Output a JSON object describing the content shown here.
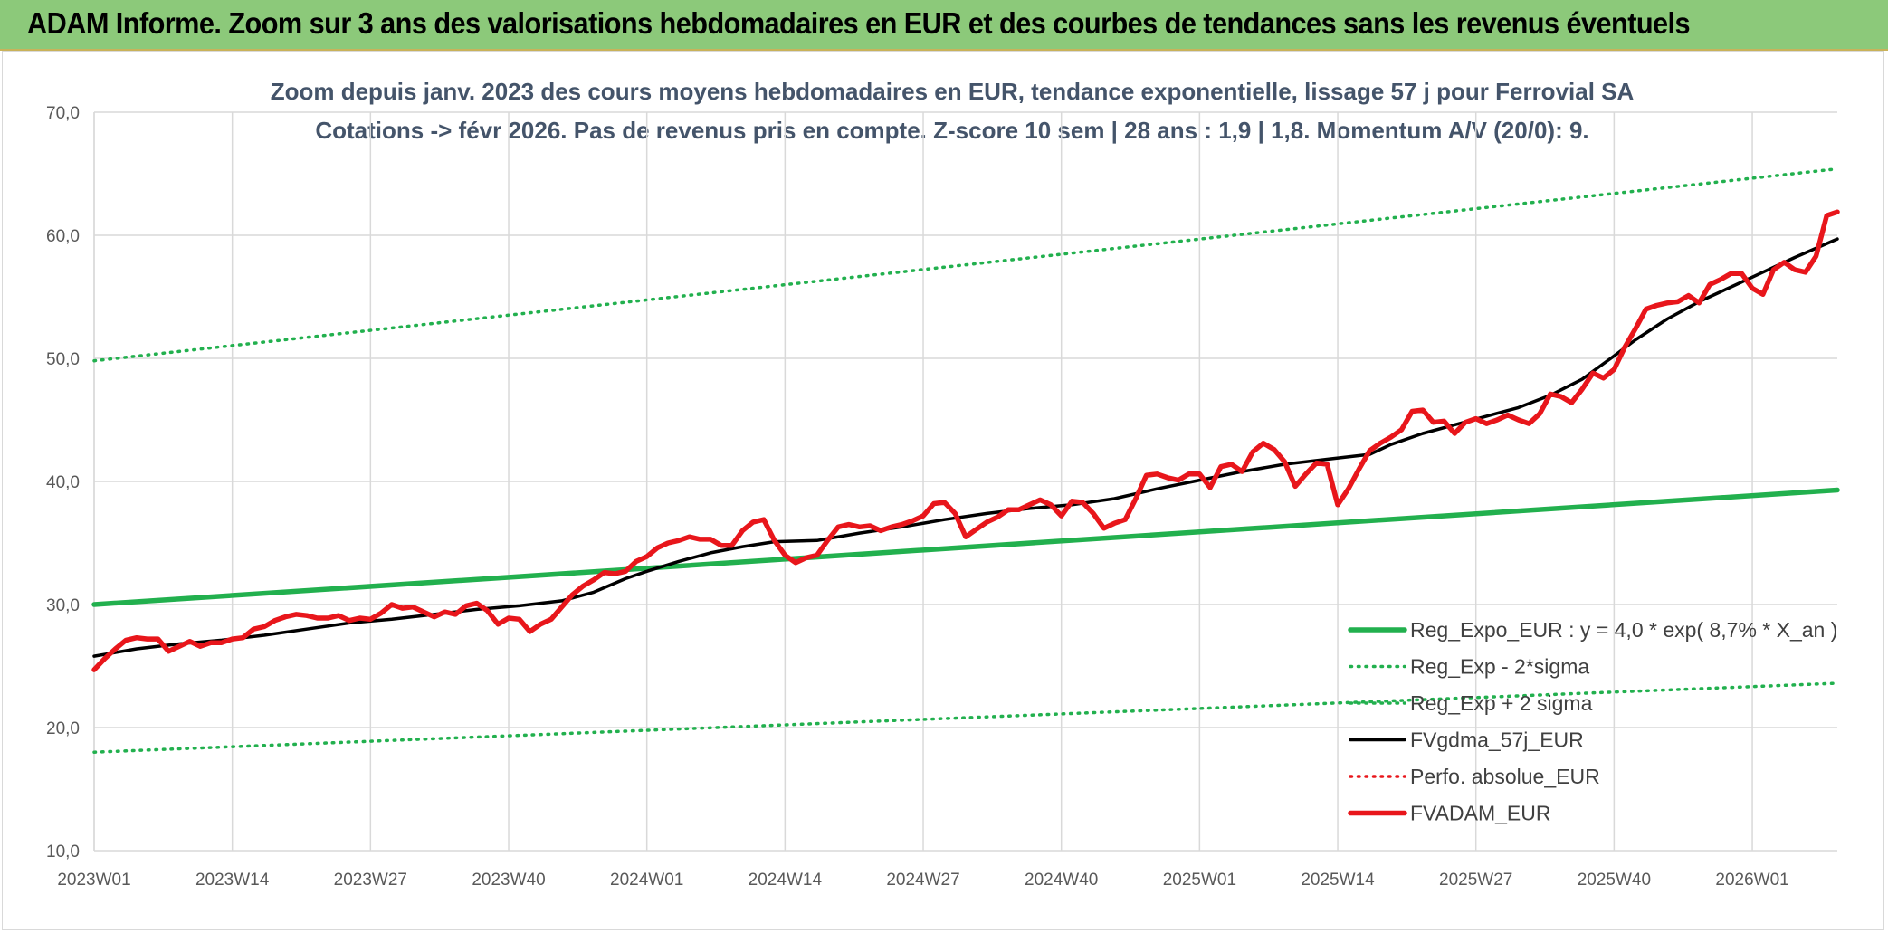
{
  "header": {
    "title": "ADAM Informe. Zoom sur 3 ans des valorisations hebdomadaires en EUR et des courbes de tendances sans les revenus éventuels"
  },
  "colors": {
    "header_bg": "#8cc97a",
    "reg_expo": "#22b04e",
    "fvgdma": "#000000",
    "fvadam": "#e8161b",
    "perfo": "#e8161b",
    "grid": "#d9d9d9"
  },
  "chart_data": {
    "type": "line",
    "title_line1": "Zoom depuis janv. 2023 des cours moyens hebdomadaires en EUR, tendance exponentielle, lissage 57 j pour Ferrovial SA",
    "title_line2": "Cotations -> févr 2026. Pas de revenus pris en compte. Z-score 10 sem | 28 ans : 1,9 | 1,8. Momentum A/V (20/0): 9.",
    "x_tick_labels": [
      "2023W01",
      "2023W14",
      "2023W27",
      "2023W40",
      "2024W01",
      "2024W14",
      "2024W27",
      "2024W40",
      "2025W01",
      "2025W14",
      "2025W27",
      "2025W40",
      "2026W01"
    ],
    "x_tick_weeks": [
      0,
      13,
      26,
      39,
      52,
      65,
      78,
      91,
      104,
      117,
      130,
      143,
      156
    ],
    "x_range": [
      0,
      164
    ],
    "y_tick_labels": [
      "10,0",
      "20,0",
      "30,0",
      "40,0",
      "50,0",
      "60,0",
      "70,0"
    ],
    "ylim": [
      10,
      70
    ],
    "grid": true,
    "legend_position": "bottom-right",
    "series": [
      {
        "name": "Reg_Expo_EUR : y = 4,0 * exp( 8,7% *  X_an )",
        "style": "solid-thick",
        "color": "#22b04e",
        "points": [
          [
            0,
            30.0
          ],
          [
            164,
            39.3
          ]
        ]
      },
      {
        "name": "Reg_Exp - 2*sigma",
        "style": "dotted",
        "color": "#22b04e",
        "points": [
          [
            0,
            18.0
          ],
          [
            164,
            23.6
          ]
        ]
      },
      {
        "name": "Reg_Exp + 2 sigma",
        "style": "dotted",
        "color": "#22b04e",
        "points": [
          [
            0,
            49.8
          ],
          [
            164,
            65.4
          ]
        ]
      },
      {
        "name": "FVgdma_57j_EUR",
        "style": "solid",
        "color": "#000000",
        "points": [
          [
            0,
            25.8
          ],
          [
            4,
            26.4
          ],
          [
            8,
            26.8
          ],
          [
            12,
            27.1
          ],
          [
            16,
            27.5
          ],
          [
            20,
            28.0
          ],
          [
            24,
            28.5
          ],
          [
            28,
            28.8
          ],
          [
            32,
            29.2
          ],
          [
            36,
            29.6
          ],
          [
            40,
            29.9
          ],
          [
            44,
            30.3
          ],
          [
            47,
            31.0
          ],
          [
            50,
            32.1
          ],
          [
            52,
            32.7
          ],
          [
            55,
            33.5
          ],
          [
            58,
            34.2
          ],
          [
            61,
            34.7
          ],
          [
            64,
            35.1
          ],
          [
            68,
            35.2
          ],
          [
            72,
            35.8
          ],
          [
            76,
            36.3
          ],
          [
            80,
            36.9
          ],
          [
            84,
            37.4
          ],
          [
            88,
            37.8
          ],
          [
            92,
            38.1
          ],
          [
            96,
            38.6
          ],
          [
            100,
            39.4
          ],
          [
            104,
            40.1
          ],
          [
            108,
            40.8
          ],
          [
            112,
            41.4
          ],
          [
            116,
            41.8
          ],
          [
            120,
            42.2
          ],
          [
            122,
            43.0
          ],
          [
            125,
            43.9
          ],
          [
            128,
            44.6
          ],
          [
            131,
            45.3
          ],
          [
            134,
            46.0
          ],
          [
            137,
            47.0
          ],
          [
            140,
            48.3
          ],
          [
            143,
            50.2
          ],
          [
            145,
            51.5
          ],
          [
            148,
            53.2
          ],
          [
            151,
            54.6
          ],
          [
            154,
            55.8
          ],
          [
            157,
            57.0
          ],
          [
            160,
            58.2
          ],
          [
            164,
            59.7
          ]
        ]
      },
      {
        "name": "Perfo. absolue_EUR",
        "style": "dotted",
        "color": "#e8161b",
        "points": []
      },
      {
        "name": "FVADAM_EUR",
        "style": "solid-thick",
        "color": "#e8161b",
        "points": [
          [
            0,
            24.7
          ],
          [
            1,
            25.6
          ],
          [
            2,
            26.4
          ],
          [
            3,
            27.1
          ],
          [
            4,
            27.3
          ],
          [
            5,
            27.2
          ],
          [
            6,
            27.2
          ],
          [
            7,
            26.2
          ],
          [
            8,
            26.6
          ],
          [
            9,
            27.0
          ],
          [
            10,
            26.6
          ],
          [
            11,
            26.9
          ],
          [
            12,
            26.9
          ],
          [
            13,
            27.2
          ],
          [
            14,
            27.3
          ],
          [
            15,
            28.0
          ],
          [
            16,
            28.2
          ],
          [
            17,
            28.7
          ],
          [
            18,
            29.0
          ],
          [
            19,
            29.2
          ],
          [
            20,
            29.1
          ],
          [
            21,
            28.9
          ],
          [
            22,
            28.9
          ],
          [
            23,
            29.1
          ],
          [
            24,
            28.7
          ],
          [
            25,
            28.9
          ],
          [
            26,
            28.8
          ],
          [
            27,
            29.3
          ],
          [
            28,
            30.0
          ],
          [
            29,
            29.7
          ],
          [
            30,
            29.8
          ],
          [
            31,
            29.4
          ],
          [
            32,
            29.0
          ],
          [
            33,
            29.4
          ],
          [
            34,
            29.2
          ],
          [
            35,
            29.9
          ],
          [
            36,
            30.1
          ],
          [
            37,
            29.5
          ],
          [
            38,
            28.4
          ],
          [
            39,
            28.9
          ],
          [
            40,
            28.8
          ],
          [
            41,
            27.8
          ],
          [
            42,
            28.4
          ],
          [
            43,
            28.8
          ],
          [
            44,
            29.8
          ],
          [
            45,
            30.8
          ],
          [
            46,
            31.5
          ],
          [
            47,
            32.0
          ],
          [
            48,
            32.6
          ],
          [
            49,
            32.5
          ],
          [
            50,
            32.7
          ],
          [
            51,
            33.5
          ],
          [
            52,
            33.9
          ],
          [
            53,
            34.6
          ],
          [
            54,
            35.0
          ],
          [
            55,
            35.2
          ],
          [
            56,
            35.5
          ],
          [
            57,
            35.3
          ],
          [
            58,
            35.3
          ],
          [
            59,
            34.8
          ],
          [
            60,
            34.8
          ],
          [
            61,
            36.0
          ],
          [
            62,
            36.7
          ],
          [
            63,
            36.9
          ],
          [
            64,
            35.2
          ],
          [
            65,
            34.0
          ],
          [
            66,
            33.4
          ],
          [
            67,
            33.8
          ],
          [
            68,
            34.0
          ],
          [
            69,
            35.2
          ],
          [
            70,
            36.3
          ],
          [
            71,
            36.5
          ],
          [
            72,
            36.3
          ],
          [
            73,
            36.4
          ],
          [
            74,
            36.0
          ],
          [
            75,
            36.3
          ],
          [
            76,
            36.5
          ],
          [
            77,
            36.8
          ],
          [
            78,
            37.2
          ],
          [
            79,
            38.2
          ],
          [
            80,
            38.3
          ],
          [
            81,
            37.4
          ],
          [
            82,
            35.5
          ],
          [
            83,
            36.1
          ],
          [
            84,
            36.7
          ],
          [
            85,
            37.1
          ],
          [
            86,
            37.7
          ],
          [
            87,
            37.7
          ],
          [
            88,
            38.1
          ],
          [
            89,
            38.5
          ],
          [
            90,
            38.1
          ],
          [
            91,
            37.2
          ],
          [
            92,
            38.4
          ],
          [
            93,
            38.3
          ],
          [
            94,
            37.4
          ],
          [
            95,
            36.2
          ],
          [
            96,
            36.6
          ],
          [
            97,
            36.9
          ],
          [
            98,
            38.6
          ],
          [
            99,
            40.5
          ],
          [
            100,
            40.6
          ],
          [
            101,
            40.3
          ],
          [
            102,
            40.1
          ],
          [
            103,
            40.6
          ],
          [
            104,
            40.6
          ],
          [
            105,
            39.5
          ],
          [
            106,
            41.2
          ],
          [
            107,
            41.4
          ],
          [
            108,
            40.8
          ],
          [
            109,
            42.4
          ],
          [
            110,
            43.1
          ],
          [
            111,
            42.6
          ],
          [
            112,
            41.6
          ],
          [
            113,
            39.6
          ],
          [
            114,
            40.6
          ],
          [
            115,
            41.5
          ],
          [
            116,
            41.4
          ],
          [
            117,
            38.1
          ],
          [
            118,
            39.4
          ],
          [
            119,
            41.0
          ],
          [
            120,
            42.5
          ],
          [
            121,
            43.1
          ],
          [
            122,
            43.6
          ],
          [
            123,
            44.2
          ],
          [
            124,
            45.7
          ],
          [
            125,
            45.8
          ],
          [
            126,
            44.8
          ],
          [
            127,
            44.9
          ],
          [
            128,
            43.9
          ],
          [
            129,
            44.8
          ],
          [
            130,
            45.1
          ],
          [
            131,
            44.7
          ],
          [
            132,
            45.0
          ],
          [
            133,
            45.4
          ],
          [
            134,
            45.0
          ],
          [
            135,
            44.7
          ],
          [
            136,
            45.5
          ],
          [
            137,
            47.1
          ],
          [
            138,
            46.9
          ],
          [
            139,
            46.4
          ],
          [
            140,
            47.5
          ],
          [
            141,
            48.8
          ],
          [
            142,
            48.4
          ],
          [
            143,
            49.1
          ],
          [
            144,
            50.9
          ],
          [
            145,
            52.4
          ],
          [
            146,
            54.0
          ],
          [
            147,
            54.3
          ],
          [
            148,
            54.5
          ],
          [
            149,
            54.6
          ],
          [
            150,
            55.1
          ],
          [
            151,
            54.5
          ],
          [
            152,
            56.0
          ],
          [
            153,
            56.4
          ],
          [
            154,
            56.9
          ],
          [
            155,
            56.9
          ],
          [
            156,
            55.7
          ],
          [
            157,
            55.2
          ],
          [
            158,
            57.2
          ],
          [
            159,
            57.8
          ],
          [
            160,
            57.2
          ],
          [
            161,
            57.0
          ],
          [
            162,
            58.3
          ],
          [
            163,
            61.6
          ],
          [
            164,
            61.9
          ]
        ]
      }
    ]
  }
}
